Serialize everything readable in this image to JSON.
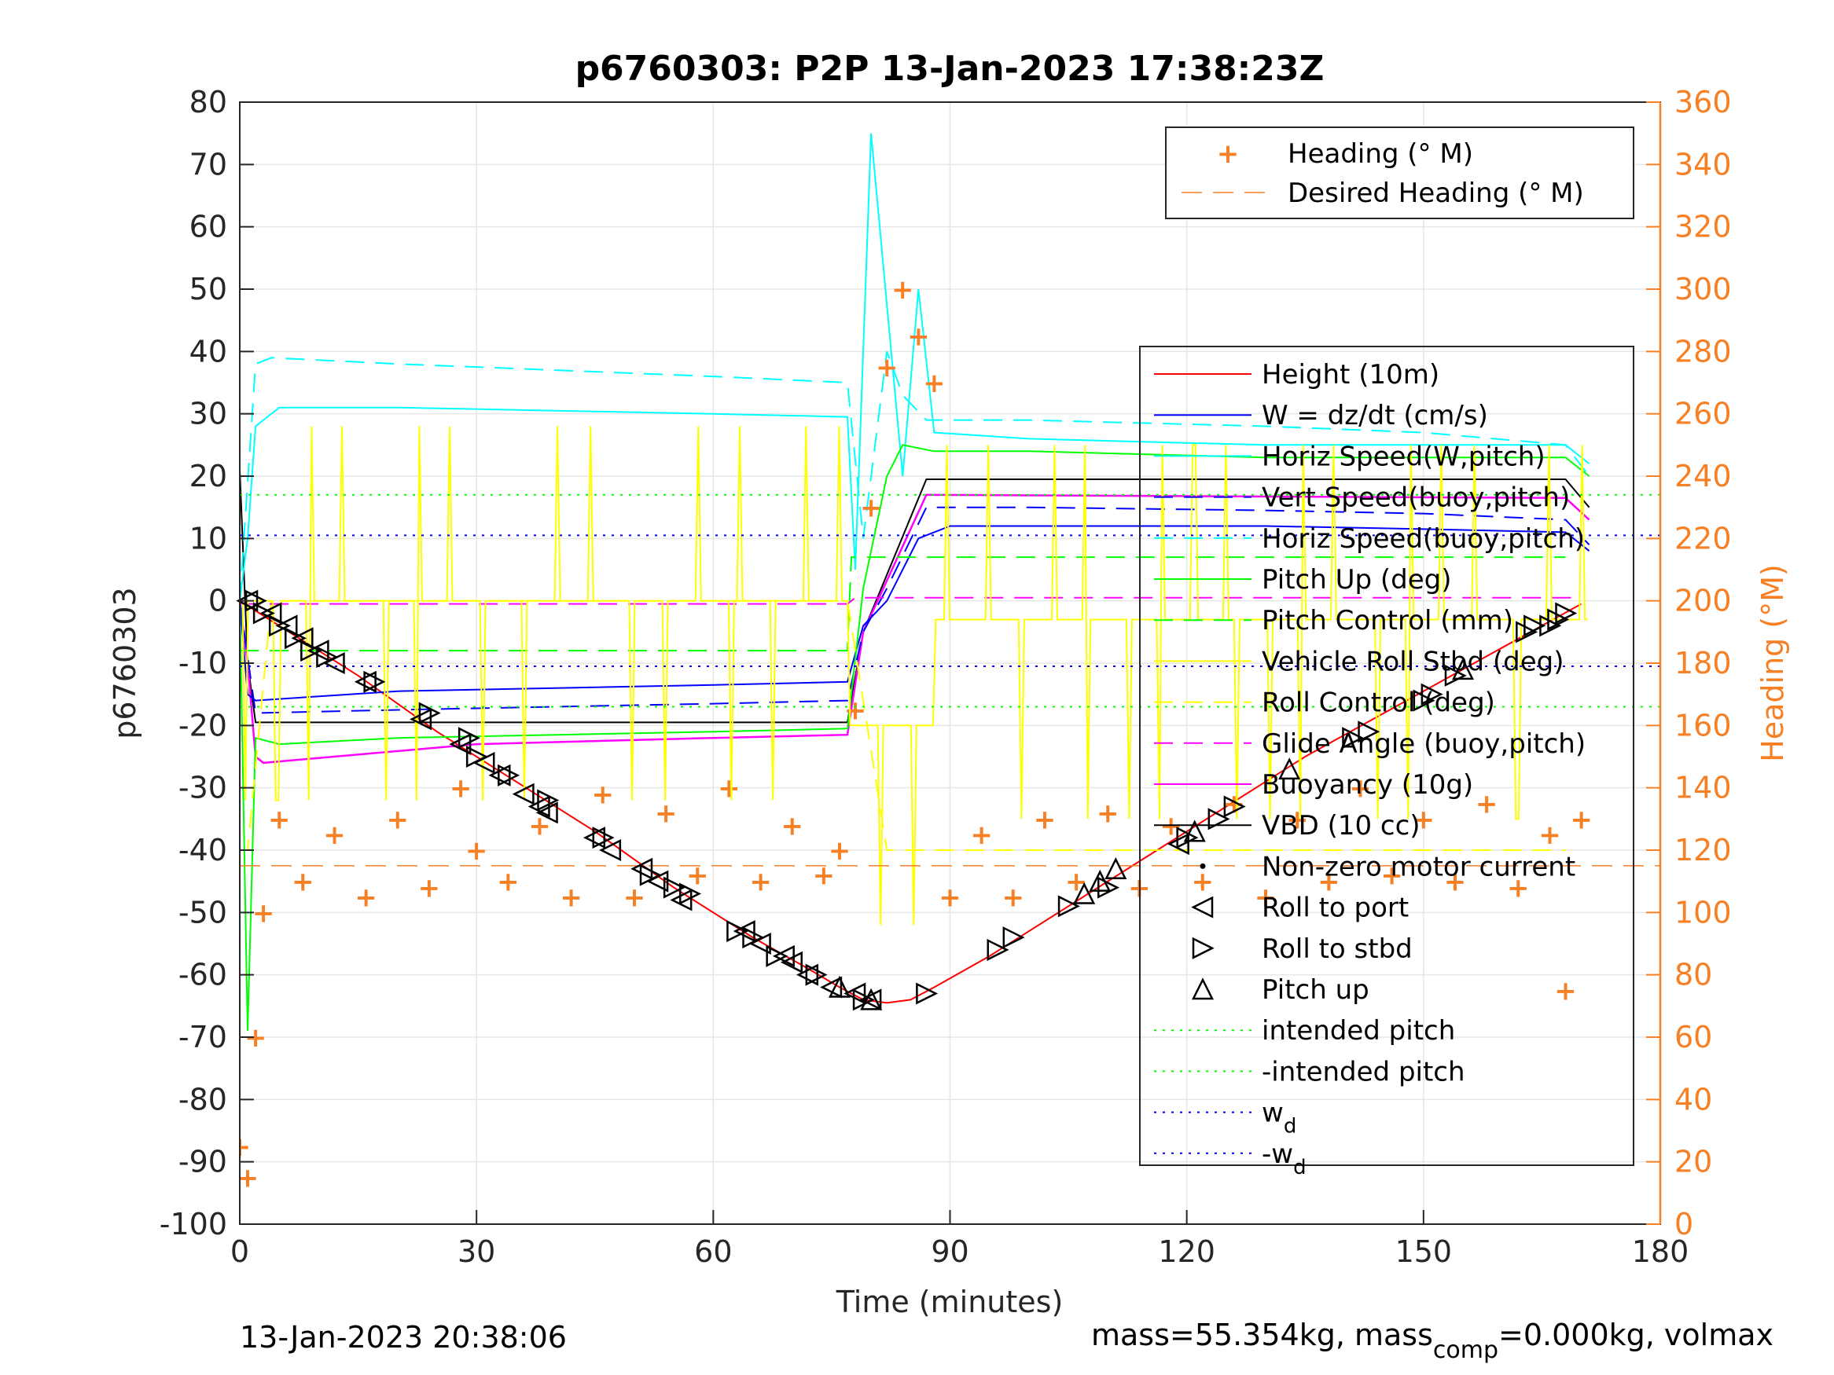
{
  "chart_data": {
    "type": "line",
    "title": "p6760303: P2P 13-Jan-2023 17:38:23Z",
    "xlabel": "Time (minutes)",
    "ylabel_left": "p6760303",
    "ylabel_right": "Heading (°M)",
    "xlim": [
      0,
      180
    ],
    "ylim_left": [
      -100,
      80
    ],
    "ylim_right": [
      0,
      360
    ],
    "x_ticks": [
      "0",
      "30",
      "60",
      "90",
      "120",
      "150",
      "180"
    ],
    "y_left_ticks": [
      "80",
      "70",
      "60",
      "50",
      "40",
      "30",
      "20",
      "10",
      "0",
      "-10",
      "-20",
      "-30",
      "-40",
      "-50",
      "-60",
      "-70",
      "-80",
      "-90",
      "-100"
    ],
    "y_right_ticks": [
      "360",
      "340",
      "320",
      "300",
      "280",
      "260",
      "240",
      "220",
      "200",
      "180",
      "160",
      "140",
      "120",
      "100",
      "80",
      "60",
      "40",
      "20",
      "0"
    ],
    "grid": true,
    "footer_left": "13-Jan-2023 20:38:06",
    "footer_right": {
      "a": "mass=55.354kg, mass",
      "sub": "comp",
      "b": "=0.000kg, volmax"
    },
    "legend_heading": [
      {
        "name": "Heading (° M)",
        "color": "#f77f24"
      },
      {
        "name": "Desired Heading (° M)",
        "color": "#f77f24"
      }
    ],
    "legend_main": [
      {
        "name": "Height (10m)",
        "color": "#ff0000"
      },
      {
        "name": "W = dz/dt (cm/s)",
        "color": "#0000ff"
      },
      {
        "name": "Horiz Speed(W,pitch)",
        "color": "#00ffff"
      },
      {
        "name": "Vert Speed(buoy,pitch)",
        "color": "#0000ff"
      },
      {
        "name": "Horiz Speed(buoy,pitch)",
        "color": "#00ffff"
      },
      {
        "name": "Pitch Up (deg)",
        "color": "#00ff00"
      },
      {
        "name": "Pitch Control (mm)",
        "color": "#00ff00"
      },
      {
        "name": "Vehicle Roll Stbd (deg)",
        "color": "#ffff00"
      },
      {
        "name": "Roll Control (deg)",
        "color": "#ffff00"
      },
      {
        "name": "Glide Angle (buoy,pitch)",
        "color": "#ff00ff"
      },
      {
        "name": "Buoyancy (10g)",
        "color": "#ff00ff"
      },
      {
        "name": "VBD (10 cc)",
        "color": "#000000"
      },
      {
        "name": "Non-zero motor current",
        "color": "#000000"
      },
      {
        "name": "Roll to port",
        "color": "#000000"
      },
      {
        "name": "Roll to stbd",
        "color": "#000000"
      },
      {
        "name": "Pitch up",
        "color": "#000000"
      },
      {
        "name": "intended pitch",
        "color": "#00ff00"
      },
      {
        "name": "-intended pitch",
        "color": "#00ff00"
      },
      {
        "name": "w",
        "sub": "d",
        "color": "#0000ff"
      },
      {
        "name": "-w",
        "sub": "d",
        "color": "#0000ff"
      }
    ],
    "reference_lines": {
      "intended_pitch": 17,
      "neg_intended_pitch": -17,
      "w_d": 10.5,
      "neg_w_d": -10.5,
      "desired_heading_deg": 115
    },
    "series": [
      {
        "name": "Height (10m)",
        "x": [
          0,
          5,
          15,
          25,
          35,
          45,
          55,
          65,
          72,
          76,
          79,
          82,
          85,
          88,
          95,
          105,
          115,
          125,
          135,
          145,
          155,
          165,
          170
        ],
        "y": [
          0,
          -4,
          -12,
          -21,
          -29,
          -37,
          -46,
          -54,
          -59,
          -62,
          -64,
          -64.5,
          -64,
          -62,
          -57,
          -49,
          -41,
          -33,
          -25,
          -18,
          -11,
          -4,
          -0.5
        ]
      },
      {
        "name": "VBD (10 cc)",
        "x": [
          0,
          1,
          2,
          77,
          79,
          87,
          168,
          171
        ],
        "y": [
          21,
          -10,
          -19.5,
          -19.5,
          -5,
          19.5,
          19.5,
          15
        ]
      },
      {
        "name": "Buoyancy (10g)",
        "x": [
          0,
          1,
          2,
          3,
          30,
          60,
          77,
          79,
          87,
          168,
          171
        ],
        "y": [
          0,
          -10,
          -25,
          -26,
          -23,
          -22,
          -21.5,
          -5,
          17,
          16.5,
          13
        ]
      },
      {
        "name": "W = dz/dt (cm/s)",
        "x": [
          0,
          1,
          2,
          20,
          40,
          60,
          77,
          79,
          82,
          86,
          90,
          110,
          130,
          150,
          168,
          171
        ],
        "y": [
          0,
          -15,
          -16,
          -14.5,
          -14,
          -13.5,
          -13,
          -4,
          0,
          10,
          12,
          12,
          12,
          11.5,
          11,
          8
        ]
      },
      {
        "name": "Vert Speed(buoy,pitch)",
        "x": [
          0,
          2,
          20,
          40,
          60,
          77,
          79,
          82,
          87,
          100,
          130,
          150,
          168,
          171
        ],
        "y": [
          0,
          -18,
          -17.5,
          -17,
          -16.5,
          -16,
          -5,
          2,
          15,
          15,
          14.5,
          14,
          13,
          9
        ]
      },
      {
        "name": "Horiz Speed(W,pitch)",
        "x": [
          0,
          1,
          2,
          5,
          20,
          40,
          60,
          77,
          78,
          80,
          84,
          86,
          88,
          100,
          130,
          150,
          168,
          171
        ],
        "y": [
          0,
          10,
          28,
          31,
          31,
          30.5,
          30,
          29.5,
          5,
          75,
          20,
          50,
          27,
          26,
          25,
          25,
          25,
          22
        ]
      },
      {
        "name": "Horiz Speed(buoy,pitch)",
        "x": [
          0,
          2,
          4,
          20,
          40,
          60,
          77,
          79,
          82,
          84,
          87,
          100,
          130,
          150,
          168,
          171
        ],
        "y": [
          0,
          38,
          39,
          38,
          37,
          36,
          35,
          10,
          40,
          33,
          29,
          29,
          28,
          27,
          25,
          20
        ]
      },
      {
        "name": "Pitch Up (deg)",
        "x": [
          0,
          1,
          2,
          5,
          20,
          40,
          60,
          77,
          79,
          82,
          84,
          88,
          100,
          130,
          150,
          168,
          171
        ],
        "y": [
          0,
          -69,
          -22,
          -23,
          -22,
          -21.5,
          -21,
          -20.5,
          2,
          20,
          25,
          24,
          24,
          23,
          23,
          23,
          20
        ]
      },
      {
        "name": "Pitch Control (mm)",
        "x": [
          0,
          77,
          77.5,
          88,
          168
        ],
        "y": [
          -8,
          -8,
          7,
          7,
          7
        ]
      },
      {
        "name": "Roll Control (deg)",
        "x": [
          0,
          1,
          4,
          77,
          82,
          87,
          168
        ],
        "y": [
          -40,
          -40,
          0,
          0,
          -40,
          -40,
          -40
        ]
      },
      {
        "name": "Glide Angle (buoy,pitch)",
        "x": [
          0,
          77,
          78,
          170
        ],
        "y": [
          -0.5,
          -0.5,
          0.5,
          0.5
        ]
      },
      {
        "name": "Heading (° M)",
        "x": [
          0,
          1,
          2,
          3,
          5,
          8,
          12,
          16,
          20,
          24,
          28,
          30,
          34,
          38,
          42,
          46,
          50,
          54,
          58,
          62,
          66,
          70,
          74,
          76,
          78,
          80,
          82,
          84,
          86,
          88,
          90,
          94,
          98,
          102,
          106,
          110,
          114,
          118,
          122,
          126,
          130,
          134,
          138,
          142,
          146,
          150,
          154,
          158,
          162,
          166,
          168,
          170
        ],
        "y": [
          25,
          15,
          60,
          100,
          130,
          110,
          125,
          105,
          130,
          108,
          140,
          120,
          110,
          128,
          105,
          138,
          105,
          132,
          112,
          140,
          110,
          128,
          112,
          120,
          165,
          230,
          275,
          300,
          285,
          270,
          105,
          125,
          105,
          130,
          110,
          132,
          108,
          128,
          110,
          135,
          105,
          130,
          110,
          140,
          112,
          130,
          110,
          135,
          108,
          125,
          75,
          130
        ]
      }
    ],
    "markers": {
      "roll_to_port": {
        "x": [
          1,
          4,
          6,
          8,
          10,
          12,
          16,
          23,
          28,
          31,
          33,
          36,
          38,
          39,
          45,
          47,
          51,
          53,
          56,
          64,
          66,
          69,
          70,
          72,
          75,
          78,
          80,
          119
        ],
        "y": [
          0,
          -2,
          -4,
          -6,
          -8,
          -10,
          -13,
          -19,
          -23,
          -26,
          -28,
          -31,
          -33,
          -34,
          -38,
          -40,
          -43,
          -45,
          -48,
          -53,
          -55,
          -57,
          -58,
          -60,
          -62,
          -63,
          -64,
          -39
        ]
      },
      "roll_to_stbd": {
        "x": [
          2,
          3,
          5,
          7,
          9,
          11,
          17,
          24,
          29,
          30,
          34,
          39,
          46,
          52,
          55,
          57,
          63,
          65,
          68,
          73,
          79,
          87,
          96,
          98,
          105,
          110,
          120,
          124,
          126,
          141,
          143,
          150,
          151,
          154,
          163,
          164,
          166,
          167,
          168
        ],
        "y": [
          0,
          -2,
          -4,
          -6,
          -8,
          -9,
          -13,
          -18,
          -22,
          -25,
          -28,
          -32,
          -38,
          -44,
          -46,
          -47,
          -53,
          -54,
          -57,
          -60,
          -64,
          -63,
          -56,
          -54,
          -49,
          -46,
          -38,
          -35,
          -33,
          -22,
          -21,
          -16,
          -15,
          -12,
          -5,
          -4,
          -4,
          -3,
          -2
        ]
      },
      "pitch_up": {
        "x": [
          76,
          80,
          107,
          109,
          111,
          121,
          133,
          155
        ],
        "y": [
          -62,
          -64,
          -47,
          -45,
          -43,
          -37,
          -27,
          -11
        ]
      }
    }
  }
}
